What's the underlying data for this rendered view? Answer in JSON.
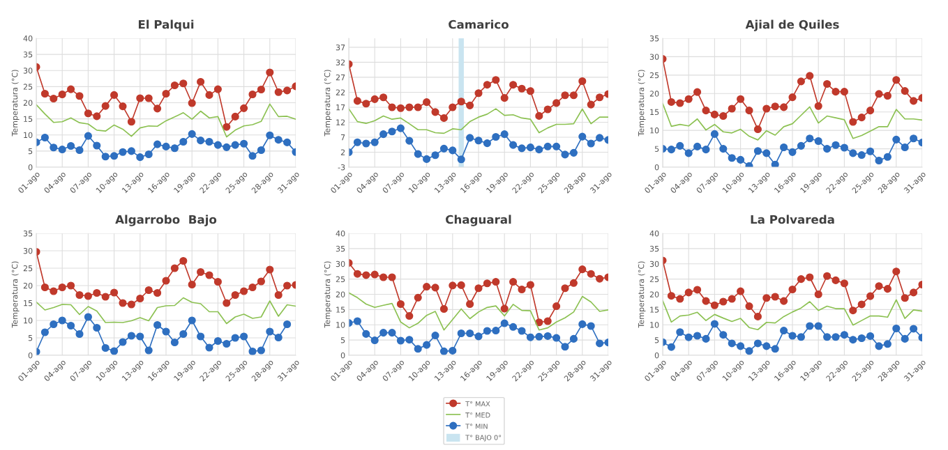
{
  "chart_data": [
    {
      "type": "line",
      "title": "El Palqui",
      "ylabel": "Temperatura (°C)",
      "x": [
        1,
        2,
        3,
        4,
        5,
        6,
        7,
        8,
        9,
        10,
        11,
        12,
        13,
        14,
        15,
        16,
        17,
        18,
        19,
        20,
        21,
        22,
        23,
        24,
        25,
        26,
        27,
        28,
        29,
        30,
        31
      ],
      "xlim": [
        1,
        31
      ],
      "xticks": [
        {
          "value": 1,
          "label": "01-ago"
        },
        {
          "value": 4,
          "label": "04-ago"
        },
        {
          "value": 7,
          "label": "07-ago"
        },
        {
          "value": 10,
          "label": "10-ago"
        },
        {
          "value": 13,
          "label": "13-ago"
        },
        {
          "value": 16,
          "label": "16-ago"
        },
        {
          "value": 19,
          "label": "19-ago"
        },
        {
          "value": 22,
          "label": "22-ago"
        },
        {
          "value": 25,
          "label": "25-ago"
        },
        {
          "value": 28,
          "label": "28-ago"
        },
        {
          "value": 31,
          "label": "31-ago"
        }
      ],
      "ylim": [
        0,
        40
      ],
      "yticks": [
        0,
        5,
        10,
        15,
        20,
        25,
        30,
        35,
        40
      ],
      "grid": true,
      "legend": "bottom",
      "series": [
        {
          "name": "T° MAX",
          "color": "#c0392b",
          "marker": "circle",
          "values": [
            31.1,
            22.8,
            21.3,
            22.6,
            24.2,
            22.1,
            16.7,
            15.8,
            19.0,
            22.4,
            18.9,
            14.1,
            21.4,
            21.4,
            18.2,
            22.8,
            25.4,
            26.0,
            19.9,
            26.5,
            22.4,
            24.2,
            12.5,
            15.7,
            18.3,
            22.6,
            24.1,
            29.4,
            23.3,
            23.8,
            25.1
          ]
        },
        {
          "name": "T° MED",
          "color": "#8cc152",
          "marker": "none",
          "values": [
            19.4,
            16.5,
            13.9,
            14.1,
            15.3,
            13.8,
            13.4,
            11.5,
            11.2,
            13.1,
            11.8,
            9.6,
            12.2,
            12.8,
            12.7,
            14.4,
            15.6,
            16.9,
            14.9,
            17.4,
            15.3,
            15.7,
            9.4,
            11.5,
            12.8,
            13.2,
            14.2,
            19.6,
            15.7,
            15.8,
            14.9
          ]
        },
        {
          "name": "T° MIN",
          "color": "#2e6fc0",
          "marker": "circle",
          "values": [
            7.7,
            9.2,
            6.1,
            5.5,
            6.6,
            5.3,
            9.7,
            6.7,
            3.3,
            3.5,
            4.7,
            5.0,
            3.1,
            4.0,
            7.1,
            6.4,
            5.9,
            7.9,
            10.3,
            8.3,
            7.9,
            6.9,
            6.2,
            6.9,
            7.3,
            3.5,
            5.3,
            9.9,
            8.5,
            7.7,
            4.7
          ]
        }
      ]
    },
    {
      "type": "line",
      "title": "Camarico",
      "ylabel": "Temperatura (°C)",
      "x": [
        1,
        2,
        3,
        4,
        5,
        6,
        7,
        8,
        9,
        10,
        11,
        12,
        13,
        14,
        15,
        16,
        17,
        18,
        19,
        20,
        21,
        22,
        23,
        24,
        25,
        26,
        27,
        28,
        29,
        30,
        31
      ],
      "xlim": [
        1,
        31
      ],
      "xticks": [
        {
          "value": 1,
          "label": "01-ago"
        },
        {
          "value": 4,
          "label": "04-ago"
        },
        {
          "value": 7,
          "label": "07-ago"
        },
        {
          "value": 10,
          "label": "10-ago"
        },
        {
          "value": 13,
          "label": "13-ago"
        },
        {
          "value": 16,
          "label": "16-ago"
        },
        {
          "value": 19,
          "label": "19-ago"
        },
        {
          "value": 22,
          "label": "22-ago"
        },
        {
          "value": 25,
          "label": "25-ago"
        },
        {
          "value": 28,
          "label": "28-ago"
        },
        {
          "value": 31,
          "label": "31-ago"
        }
      ],
      "ylim": [
        -3,
        40
      ],
      "yticks": [
        -3,
        2,
        7,
        12,
        17,
        22,
        27,
        32,
        37
      ],
      "grid": true,
      "legend": "bottom",
      "bands": [
        {
          "axis": "x",
          "from": 13.7,
          "to": 14.3,
          "label": "T° BAJO 0°",
          "color": "#c9e4f0"
        }
      ],
      "series": [
        {
          "name": "T° MAX",
          "color": "#c0392b",
          "marker": "circle",
          "values": [
            31.4,
            19.1,
            18.2,
            19.7,
            20.3,
            17.0,
            16.7,
            17.0,
            17.0,
            18.7,
            15.4,
            13.4,
            17.0,
            18.9,
            17.6,
            21.7,
            24.5,
            26.1,
            20.1,
            24.5,
            23.2,
            22.4,
            14.1,
            16.3,
            18.4,
            21.0,
            21.0,
            25.7,
            17.9,
            20.3,
            21.4
          ]
        },
        {
          "name": "T° MED",
          "color": "#8cc152",
          "marker": "none",
          "values": [
            16.5,
            12.2,
            11.6,
            12.5,
            14.1,
            13.0,
            13.4,
            11.5,
            9.5,
            9.5,
            8.5,
            8.3,
            9.8,
            9.5,
            12.2,
            13.7,
            14.7,
            16.5,
            14.3,
            14.5,
            13.4,
            13.0,
            8.5,
            10.1,
            11.3,
            11.3,
            11.5,
            16.4,
            11.5,
            13.7,
            13.7
          ]
        },
        {
          "name": "T° MIN",
          "color": "#2e6fc0",
          "marker": "circle",
          "values": [
            2.0,
            5.3,
            4.9,
            5.3,
            8.0,
            8.9,
            10.0,
            5.8,
            1.4,
            -0.3,
            1.0,
            3.2,
            2.6,
            -0.4,
            6.8,
            5.9,
            5.0,
            7.1,
            8.0,
            4.4,
            3.3,
            3.6,
            2.9,
            3.9,
            3.9,
            1.2,
            1.8,
            7.2,
            4.9,
            6.8,
            6.1
          ]
        }
      ]
    },
    {
      "type": "line",
      "title": "Ajial de Quiles",
      "ylabel": "Temperatura (°C)",
      "x": [
        1,
        2,
        3,
        4,
        5,
        6,
        7,
        8,
        9,
        10,
        11,
        12,
        13,
        14,
        15,
        16,
        17,
        18,
        19,
        20,
        21,
        22,
        23,
        24,
        25,
        26,
        27,
        28,
        29,
        30,
        31
      ],
      "xlim": [
        1,
        31
      ],
      "xticks": [
        {
          "value": 1,
          "label": "01-ago"
        },
        {
          "value": 4,
          "label": "04-ago"
        },
        {
          "value": 7,
          "label": "07-ago"
        },
        {
          "value": 10,
          "label": "10-ago"
        },
        {
          "value": 13,
          "label": "13-ago"
        },
        {
          "value": 16,
          "label": "16-ago"
        },
        {
          "value": 19,
          "label": "19-ago"
        },
        {
          "value": 22,
          "label": "22-ago"
        },
        {
          "value": 25,
          "label": "25-ago"
        },
        {
          "value": 28,
          "label": "28-ago"
        },
        {
          "value": 31,
          "label": "31-ago"
        }
      ],
      "ylim": [
        0,
        35
      ],
      "yticks": [
        0,
        5,
        10,
        15,
        20,
        25,
        30,
        35
      ],
      "grid": true,
      "legend": "bottom",
      "series": [
        {
          "name": "T° MAX",
          "color": "#c0392b",
          "marker": "circle",
          "values": [
            29.4,
            17.7,
            17.4,
            18.5,
            20.4,
            15.4,
            14.3,
            13.9,
            15.9,
            18.5,
            15.4,
            10.3,
            15.9,
            16.5,
            16.3,
            19.0,
            23.3,
            24.8,
            16.6,
            22.6,
            20.5,
            20.5,
            12.3,
            13.5,
            15.4,
            19.9,
            19.4,
            23.7,
            20.7,
            18.0,
            18.8
          ]
        },
        {
          "name": "T° MED",
          "color": "#8cc152",
          "marker": "none",
          "values": [
            17.3,
            11.1,
            11.6,
            11.2,
            13.1,
            10.1,
            11.6,
            9.6,
            9.3,
            10.3,
            8.4,
            7.4,
            9.9,
            8.7,
            11.0,
            11.8,
            14.1,
            16.4,
            12.0,
            13.9,
            13.4,
            12.9,
            7.8,
            8.6,
            9.8,
            11.0,
            11.0,
            15.7,
            13.1,
            13.1,
            12.8
          ]
        },
        {
          "name": "T° MIN",
          "color": "#2e6fc0",
          "marker": "circle",
          "values": [
            5.0,
            4.8,
            5.8,
            3.8,
            5.6,
            4.8,
            9.0,
            5.0,
            2.5,
            2.0,
            0.3,
            4.4,
            3.8,
            0.7,
            5.4,
            4.1,
            5.8,
            7.8,
            7.1,
            5.0,
            6.0,
            5.3,
            3.8,
            3.3,
            4.3,
            1.8,
            2.8,
            7.5,
            5.4,
            7.8,
            6.7
          ]
        }
      ]
    },
    {
      "type": "line",
      "title": "Algarrobo  Bajo",
      "ylabel": "Temperatura (°C)",
      "x": [
        1,
        2,
        3,
        4,
        5,
        6,
        7,
        8,
        9,
        10,
        11,
        12,
        13,
        14,
        15,
        16,
        17,
        18,
        19,
        20,
        21,
        22,
        23,
        24,
        25,
        26,
        27,
        28,
        29,
        30,
        31
      ],
      "xlim": [
        1,
        31
      ],
      "xticks": [
        {
          "value": 1,
          "label": "01-ago"
        },
        {
          "value": 4,
          "label": "04-ago"
        },
        {
          "value": 7,
          "label": "07-ago"
        },
        {
          "value": 10,
          "label": "10-ago"
        },
        {
          "value": 13,
          "label": "13-ago"
        },
        {
          "value": 16,
          "label": "16-ago"
        },
        {
          "value": 19,
          "label": "19-ago"
        },
        {
          "value": 22,
          "label": "22-ago"
        },
        {
          "value": 25,
          "label": "25-ago"
        },
        {
          "value": 28,
          "label": "28-ago"
        },
        {
          "value": 31,
          "label": "31-ago"
        }
      ],
      "ylim": [
        0,
        35
      ],
      "yticks": [
        0,
        5,
        10,
        15,
        20,
        25,
        30,
        35
      ],
      "grid": true,
      "legend": "bottom",
      "series": [
        {
          "name": "T° MAX",
          "color": "#c0392b",
          "marker": "circle",
          "values": [
            29.7,
            19.5,
            18.4,
            19.5,
            20.0,
            17.3,
            17.0,
            17.9,
            16.8,
            18.0,
            15.0,
            14.6,
            16.3,
            18.7,
            17.9,
            21.4,
            25.0,
            27.1,
            20.3,
            23.9,
            23.0,
            21.1,
            15.0,
            17.3,
            18.4,
            19.5,
            21.2,
            24.6,
            17.3,
            20.0,
            20.2
          ]
        },
        {
          "name": "T° MED",
          "color": "#8cc152",
          "marker": "none",
          "values": [
            15.3,
            13.0,
            13.7,
            14.6,
            14.5,
            11.7,
            14.0,
            12.7,
            9.4,
            9.5,
            9.4,
            9.9,
            10.8,
            9.9,
            13.7,
            14.2,
            14.3,
            16.5,
            15.2,
            14.8,
            12.5,
            12.5,
            9.1,
            11.0,
            11.8,
            10.6,
            11.0,
            15.6,
            11.2,
            14.5,
            14.1
          ]
        },
        {
          "name": "T° MIN",
          "color": "#2e6fc0",
          "marker": "circle",
          "values": [
            1.0,
            6.6,
            8.9,
            10.0,
            8.5,
            6.1,
            11.0,
            7.9,
            2.1,
            1.2,
            3.8,
            5.6,
            5.4,
            1.4,
            8.7,
            6.8,
            3.7,
            6.1,
            10.0,
            5.4,
            2.2,
            4.1,
            3.3,
            5.0,
            5.4,
            1.1,
            1.4,
            6.8,
            5.1,
            8.9,
            null
          ]
        }
      ]
    },
    {
      "type": "line",
      "title": "Chaguaral",
      "ylabel": "Temperatura (°C)",
      "x": [
        1,
        2,
        3,
        4,
        5,
        6,
        7,
        8,
        9,
        10,
        11,
        12,
        13,
        14,
        15,
        16,
        17,
        18,
        19,
        20,
        21,
        22,
        23,
        24,
        25,
        26,
        27,
        28,
        29,
        30,
        31
      ],
      "xlim": [
        1,
        31
      ],
      "xticks": [
        {
          "value": 1,
          "label": "01-ago"
        },
        {
          "value": 4,
          "label": "04-ago"
        },
        {
          "value": 7,
          "label": "07-ago"
        },
        {
          "value": 10,
          "label": "10-ago"
        },
        {
          "value": 13,
          "label": "13-ago"
        },
        {
          "value": 16,
          "label": "16-ago"
        },
        {
          "value": 19,
          "label": "19-ago"
        },
        {
          "value": 22,
          "label": "22-ago"
        },
        {
          "value": 25,
          "label": "25-ago"
        },
        {
          "value": 28,
          "label": "28-ago"
        },
        {
          "value": 31,
          "label": "31-ago"
        }
      ],
      "ylim": [
        0,
        40
      ],
      "yticks": [
        0,
        5,
        10,
        15,
        20,
        25,
        30,
        35,
        40
      ],
      "grid": true,
      "legend": "bottom",
      "series": [
        {
          "name": "T° MAX",
          "color": "#c0392b",
          "marker": "circle",
          "values": [
            30.3,
            26.7,
            26.3,
            26.5,
            25.6,
            25.6,
            16.8,
            12.9,
            18.9,
            22.5,
            22.2,
            15.2,
            22.9,
            23.0,
            16.8,
            22.0,
            23.6,
            24.1,
            15.3,
            24.1,
            21.6,
            23.1,
            10.8,
            11.2,
            16.1,
            22.0,
            23.7,
            28.2,
            26.7,
            25.1,
            25.6
          ]
        },
        {
          "name": "T° MED",
          "color": "#8cc152",
          "marker": "none",
          "values": [
            20.5,
            18.9,
            16.8,
            15.7,
            16.4,
            17.0,
            10.9,
            9.0,
            10.5,
            13.1,
            14.4,
            8.3,
            11.7,
            15.2,
            12.0,
            14.2,
            15.7,
            16.2,
            12.9,
            16.7,
            14.7,
            14.6,
            8.3,
            9.0,
            10.9,
            12.3,
            14.2,
            19.3,
            17.5,
            14.4,
            14.9
          ]
        },
        {
          "name": "T° MIN",
          "color": "#2e6fc0",
          "marker": "circle",
          "values": [
            10.6,
            11.2,
            7.0,
            4.9,
            7.4,
            7.4,
            4.8,
            5.1,
            2.1,
            3.4,
            6.5,
            1.3,
            1.5,
            7.2,
            7.2,
            6.2,
            8.0,
            8.1,
            10.5,
            9.3,
            8.0,
            5.9,
            6.1,
            6.3,
            5.7,
            2.8,
            5.4,
            10.2,
            9.6,
            3.9,
            4.2
          ]
        }
      ]
    },
    {
      "type": "line",
      "title": "La Polvareda",
      "ylabel": "Temperatura (°C)",
      "x": [
        1,
        2,
        3,
        4,
        5,
        6,
        7,
        8,
        9,
        10,
        11,
        12,
        13,
        14,
        15,
        16,
        17,
        18,
        19,
        20,
        21,
        22,
        23,
        24,
        25,
        26,
        27,
        28,
        29,
        30,
        31
      ],
      "xlim": [
        1,
        31
      ],
      "xticks": [
        {
          "value": 1,
          "label": "01-ago"
        },
        {
          "value": 4,
          "label": "04-ago"
        },
        {
          "value": 7,
          "label": "07-ago"
        },
        {
          "value": 10,
          "label": "10-ago"
        },
        {
          "value": 13,
          "label": "13-ago"
        },
        {
          "value": 16,
          "label": "16-ago"
        },
        {
          "value": 19,
          "label": "19-ago"
        },
        {
          "value": 22,
          "label": "22-ago"
        },
        {
          "value": 25,
          "label": "25-ago"
        },
        {
          "value": 28,
          "label": "28-ago"
        },
        {
          "value": 31,
          "label": "31-ago"
        }
      ],
      "ylim": [
        0,
        40
      ],
      "yticks": [
        0,
        5,
        10,
        15,
        20,
        25,
        30,
        35,
        40
      ],
      "grid": true,
      "legend": "bottom",
      "series": [
        {
          "name": "T° MAX",
          "color": "#c0392b",
          "marker": "circle",
          "values": [
            31.1,
            19.5,
            18.5,
            20.6,
            21.5,
            17.8,
            16.4,
            17.6,
            18.5,
            21.0,
            16.1,
            12.7,
            18.8,
            19.2,
            17.8,
            21.6,
            25.0,
            25.6,
            20.0,
            26.0,
            24.6,
            23.6,
            14.7,
            16.7,
            19.4,
            22.7,
            21.8,
            27.5,
            18.8,
            20.6,
            23.2
          ]
        },
        {
          "name": "T° MED",
          "color": "#8cc152",
          "marker": "none",
          "values": [
            17.9,
            10.9,
            12.9,
            13.2,
            14.1,
            11.4,
            13.4,
            12.2,
            11.1,
            12.1,
            9.1,
            8.4,
            10.8,
            10.6,
            12.7,
            14.2,
            15.5,
            17.6,
            14.7,
            16.1,
            15.3,
            15.3,
            9.9,
            11.4,
            12.9,
            12.9,
            12.5,
            18.2,
            12.1,
            14.9,
            14.5
          ]
        },
        {
          "name": "T° MIN",
          "color": "#2e6fc0",
          "marker": "circle",
          "values": [
            4.3,
            2.7,
            7.6,
            5.9,
            6.4,
            5.4,
            10.3,
            6.7,
            3.9,
            3.0,
            1.4,
            3.9,
            3.0,
            2.1,
            8.1,
            6.4,
            6.0,
            9.6,
            9.6,
            6.0,
            6.0,
            6.7,
            5.1,
            5.6,
            6.3,
            3.0,
            3.7,
            8.8,
            5.4,
            8.7,
            5.8
          ]
        }
      ]
    }
  ]
}
